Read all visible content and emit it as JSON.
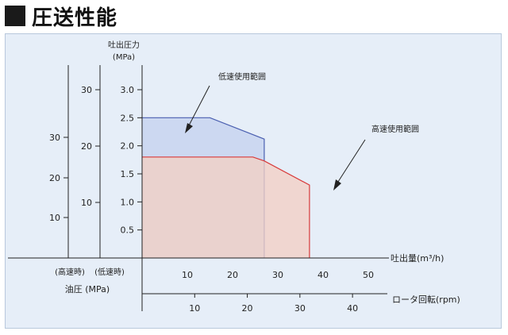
{
  "heading": "圧送性能",
  "chart_data": {
    "type": "area",
    "y_axis": {
      "label_line1": "吐出圧力",
      "label_line2": "(MPa)",
      "ticks": [
        "0.5",
        "1.0",
        "1.5",
        "2.0",
        "2.5",
        "3.0"
      ],
      "ylim": [
        0,
        3.0
      ]
    },
    "oil_axis_high": {
      "ticks": [
        "10",
        "20",
        "30"
      ],
      "label": "(高速時)"
    },
    "oil_axis_low": {
      "ticks": [
        "10",
        "20",
        "30"
      ],
      "label": "(低速時)"
    },
    "oil_label": "油圧 (MPa)",
    "x_axis": {
      "label": "吐出量(m³/h)",
      "ticks": [
        "10",
        "20",
        "30",
        "40",
        "50"
      ],
      "xlim": [
        0,
        50
      ]
    },
    "x2_axis": {
      "label": "ロータ回転(rpm)",
      "ticks": [
        "10",
        "20",
        "30",
        "40"
      ],
      "xlim": [
        0,
        43
      ]
    },
    "series": [
      {
        "name": "低速使用範囲",
        "color": "#c4d2ee",
        "stroke": "#4a5fb0",
        "points": [
          [
            0,
            2.5
          ],
          [
            15,
            2.5
          ],
          [
            27,
            2.12
          ],
          [
            27,
            0
          ]
        ]
      },
      {
        "name": "高速使用範囲",
        "color": "#f2cfc4",
        "stroke": "#d83a3a",
        "points": [
          [
            0,
            1.8
          ],
          [
            24.5,
            1.8
          ],
          [
            27,
            1.73
          ],
          [
            37,
            1.3
          ],
          [
            37,
            0
          ]
        ]
      }
    ]
  }
}
